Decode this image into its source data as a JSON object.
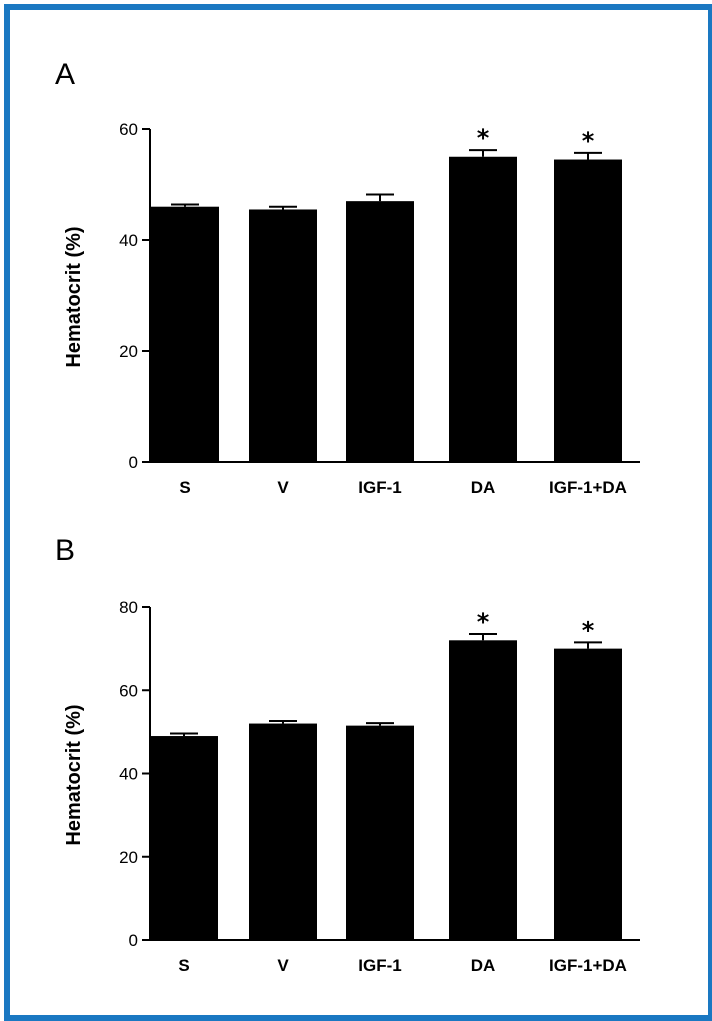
{
  "chart_data": [
    {
      "panel": "A",
      "type": "bar",
      "categories": [
        "S",
        "V",
        "IGF-1",
        "DA",
        "IGF-1+DA"
      ],
      "values": [
        46,
        45.5,
        47,
        55,
        54.5
      ],
      "errors": [
        0.4,
        0.5,
        1.2,
        1.2,
        1.2
      ],
      "significance": [
        "",
        "",
        "",
        "*",
        "*"
      ],
      "ylabel": "Hematocrit (%)",
      "ylim": [
        0,
        60
      ],
      "yticks": [
        0,
        20,
        40,
        60
      ],
      "colors": {
        "bar": "#000000",
        "axis": "#000000"
      }
    },
    {
      "panel": "B",
      "type": "bar",
      "categories": [
        "S",
        "V",
        "IGF-1",
        "DA",
        "IGF-1+DA"
      ],
      "values": [
        49,
        52,
        51.5,
        72,
        70
      ],
      "errors": [
        0.6,
        0.6,
        0.6,
        1.5,
        1.5
      ],
      "significance": [
        "",
        "",
        "",
        "*",
        "*"
      ],
      "ylabel": "Hematocrit (%)",
      "ylim": [
        0,
        80
      ],
      "yticks": [
        0,
        20,
        40,
        60,
        80
      ],
      "colors": {
        "bar": "#000000",
        "axis": "#000000"
      }
    }
  ],
  "frame": {
    "border_color": "#1a78c2"
  }
}
